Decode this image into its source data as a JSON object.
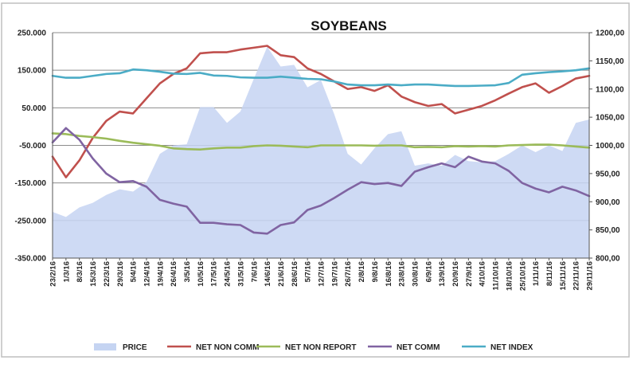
{
  "chart_data": {
    "type": "line",
    "title": "SOYBEANS",
    "categories": [
      "23/2/16",
      "1/3/16",
      "8/3/16",
      "15/3/16",
      "22/3/16",
      "29/3/16",
      "5/4/16",
      "12/4/16",
      "19/4/16",
      "26/4/16",
      "3/5/16",
      "10/5/16",
      "17/5/16",
      "24/5/16",
      "31/5/16",
      "7/6/16",
      "14/6/16",
      "21/6/16",
      "28/6/16",
      "5/7/16",
      "12/7/16",
      "19/7/16",
      "26/7/16",
      "2/8/16",
      "9/8/16",
      "16/8/16",
      "23/8/16",
      "30/8/16",
      "6/9/16",
      "13/9/16",
      "20/9/16",
      "27/9/16",
      "4/10/16",
      "11/10/16",
      "18/10/16",
      "25/10/16",
      "1/11/16",
      "8/11/16",
      "15/11/16",
      "22/11/16",
      "29/11/16"
    ],
    "left_axis": {
      "min": -350000,
      "max": 250000,
      "step": 100000,
      "tick_labels": [
        "250.000",
        "150.000",
        "50.000",
        "-50.000",
        "-150.000",
        "-250.000",
        "-350.000"
      ]
    },
    "right_axis": {
      "min": 800,
      "max": 1200,
      "step": 50,
      "tick_labels": [
        "1200,00",
        "1150,00",
        "1100,00",
        "1050,00",
        "1000,00",
        "950,00",
        "900,00",
        "850,00",
        "800,00"
      ]
    },
    "grid": "horizontal",
    "legend_position": "bottom",
    "series": [
      {
        "name": "PRICE",
        "kind": "area",
        "axis": "right",
        "color": "#c5d4f2",
        "values": [
          882,
          873,
          890,
          898,
          912,
          922,
          918,
          935,
          985,
          1000,
          1002,
          1068,
          1068,
          1040,
          1060,
          1118,
          1175,
          1140,
          1143,
          1103,
          1116,
          1055,
          985,
          966,
          995,
          1020,
          1025,
          964,
          968,
          964,
          983,
          972,
          970,
          972,
          985,
          1000,
          988,
          1000,
          990,
          1040,
          1046
        ]
      },
      {
        "name": "NET NON COMM",
        "kind": "line",
        "axis": "left",
        "color": "#c0504d",
        "values": [
          -80000,
          -135000,
          -90000,
          -30000,
          15000,
          40000,
          35000,
          75000,
          115000,
          140000,
          155000,
          195000,
          198000,
          198000,
          205000,
          210000,
          215000,
          190000,
          185000,
          155000,
          140000,
          120000,
          100000,
          105000,
          95000,
          110000,
          80000,
          65000,
          55000,
          60000,
          35000,
          45000,
          55000,
          70000,
          88000,
          105000,
          115000,
          90000,
          108000,
          128000,
          135000
        ]
      },
      {
        "name": "NET NON REPORT",
        "kind": "line",
        "axis": "left",
        "color": "#9bbb59",
        "values": [
          -18000,
          -20000,
          -25000,
          -28000,
          -32000,
          -38000,
          -43000,
          -47000,
          -51000,
          -58000,
          -60000,
          -61000,
          -58000,
          -56000,
          -56000,
          -52000,
          -50000,
          -51000,
          -53000,
          -55000,
          -50000,
          -50000,
          -50000,
          -50000,
          -51000,
          -50000,
          -50000,
          -55000,
          -54000,
          -55000,
          -52000,
          -53000,
          -52000,
          -53000,
          -50000,
          -49000,
          -48000,
          -48000,
          -50000,
          -53000,
          -56000
        ]
      },
      {
        "name": "NET COMM",
        "kind": "line",
        "axis": "left",
        "color": "#8064a2",
        "values": [
          -42000,
          -4000,
          -35000,
          -85000,
          -125000,
          -148000,
          -145000,
          -160000,
          -195000,
          -205000,
          -213000,
          -256000,
          -256000,
          -260000,
          -262000,
          -282000,
          -285000,
          -262000,
          -255000,
          -222000,
          -210000,
          -190000,
          -168000,
          -148000,
          -153000,
          -150000,
          -158000,
          -120000,
          -108000,
          -98000,
          -108000,
          -80000,
          -93000,
          -98000,
          -118000,
          -150000,
          -165000,
          -175000,
          -160000,
          -170000,
          -185000
        ]
      },
      {
        "name": "NET INDEX",
        "kind": "line",
        "axis": "left",
        "color": "#4bacc6",
        "values": [
          135000,
          130000,
          130000,
          135000,
          140000,
          142000,
          152000,
          150000,
          146000,
          141000,
          140000,
          143000,
          136000,
          135000,
          131000,
          130000,
          130000,
          133000,
          130000,
          127000,
          126000,
          120000,
          112000,
          110000,
          110000,
          112000,
          110000,
          112000,
          112000,
          110000,
          108000,
          108000,
          109000,
          110000,
          116000,
          138000,
          142000,
          145000,
          147000,
          150000,
          155000
        ]
      }
    ]
  }
}
